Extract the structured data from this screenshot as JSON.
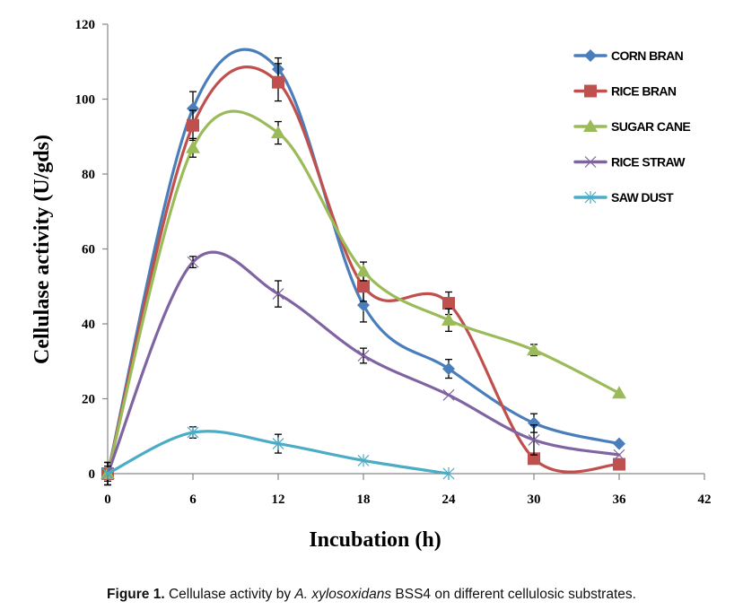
{
  "chart_data": {
    "type": "line",
    "title": "",
    "xlabel": "Incubation (h)",
    "ylabel": "Cellulase activity (U/gds)",
    "xlim": [
      0,
      42
    ],
    "ylim": [
      0,
      120
    ],
    "xticks": [
      0,
      6,
      12,
      18,
      24,
      30,
      36,
      42
    ],
    "yticks": [
      0,
      20,
      40,
      60,
      80,
      100,
      120
    ],
    "grid": false,
    "smoothed": true,
    "legend_position": "top-right",
    "series": [
      {
        "name": "CORN BRAN",
        "color": "#4a7ebb",
        "marker": "diamond",
        "x": [
          0,
          6,
          12,
          18,
          24,
          30,
          36
        ],
        "y": [
          0,
          97.5,
          108,
          45,
          28,
          13.5,
          8
        ],
        "err": [
          3,
          4.5,
          3,
          4.5,
          2.5,
          2.5,
          0
        ]
      },
      {
        "name": "RICE BRAN",
        "color": "#c0504d",
        "marker": "square",
        "x": [
          0,
          6,
          12,
          18,
          24,
          30,
          36
        ],
        "y": [
          0,
          93,
          104.5,
          50,
          45.5,
          4,
          2.5
        ],
        "err": [
          3,
          4,
          5,
          4,
          3,
          0,
          0
        ]
      },
      {
        "name": "SUGAR CANE",
        "color": "#9bbb59",
        "marker": "triangle",
        "x": [
          0,
          6,
          12,
          18,
          24,
          30,
          36
        ],
        "y": [
          0,
          87,
          91,
          54,
          41,
          33,
          21.5
        ],
        "err": [
          3,
          2.5,
          3,
          2.5,
          3,
          1.5,
          0
        ]
      },
      {
        "name": "RICE STRAW",
        "color": "#8064a2",
        "marker": "x",
        "x": [
          0,
          6,
          12,
          18,
          24,
          30,
          36
        ],
        "y": [
          0,
          56.5,
          48,
          31.5,
          21,
          9,
          5
        ],
        "err": [
          2,
          1.5,
          3.5,
          2,
          0,
          4,
          0
        ]
      },
      {
        "name": "SAW DUST",
        "color": "#4bacc6",
        "marker": "star",
        "x": [
          0,
          6,
          12,
          18,
          24
        ],
        "y": [
          0,
          11,
          8,
          3.5,
          0
        ],
        "err": [
          0,
          1.5,
          2.5,
          0,
          0
        ]
      }
    ]
  },
  "caption": {
    "label": "Figure 1.",
    "text_before": " Cellulase activity by ",
    "organism": "A. xylosoxidans",
    "text_after": " BSS4 on different cellulosic substrates."
  }
}
